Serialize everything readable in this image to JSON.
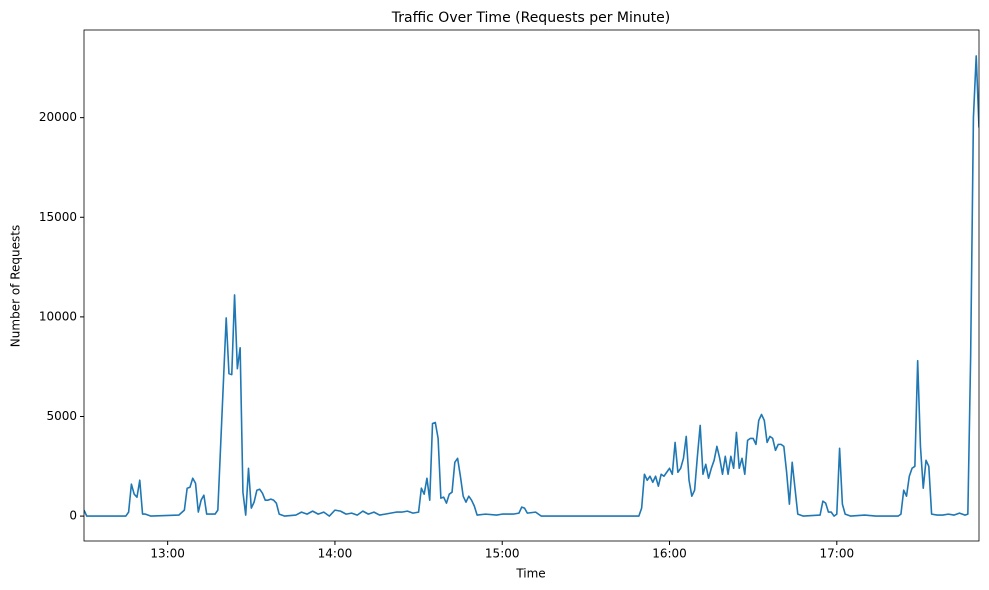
{
  "chart_data": {
    "type": "line",
    "title": "Traffic Over Time (Requests per Minute)",
    "x_label": "Time",
    "y_label": "Number of Requests",
    "color": "#1f77b4",
    "x": [
      "12:30",
      "12:31",
      "12:45",
      "12:46",
      "12:47",
      "12:48",
      "12:49",
      "12:50",
      "12:51",
      "12:52",
      "12:54",
      "13:04",
      "13:06",
      "13:07",
      "13:08",
      "13:09",
      "13:10",
      "13:11",
      "13:12",
      "13:13",
      "13:14",
      "13:17",
      "13:18",
      "13:21",
      "13:22",
      "13:23",
      "13:24",
      "13:25",
      "13:26",
      "13:27",
      "13:28",
      "13:29",
      "13:30",
      "13:31",
      "13:32",
      "13:33",
      "13:34",
      "13:35",
      "13:36",
      "13:37",
      "13:38",
      "13:39",
      "13:40",
      "13:42",
      "13:46",
      "13:48",
      "13:50",
      "13:52",
      "13:54",
      "13:56",
      "13:58",
      "14:00",
      "14:02",
      "14:04",
      "14:06",
      "14:08",
      "14:10",
      "14:12",
      "14:14",
      "14:16",
      "14:18",
      "14:20",
      "14:22",
      "14:24",
      "14:26",
      "14:28",
      "14:30",
      "14:31",
      "14:32",
      "14:33",
      "14:34",
      "14:35",
      "14:36",
      "14:37",
      "14:38",
      "14:39",
      "14:40",
      "14:41",
      "14:42",
      "14:43",
      "14:44",
      "14:45",
      "14:46",
      "14:47",
      "14:48",
      "14:49",
      "14:50",
      "14:51",
      "14:54",
      "14:58",
      "15:00",
      "15:04",
      "15:06",
      "15:07",
      "15:08",
      "15:09",
      "15:12",
      "15:14",
      "15:49",
      "15:50",
      "15:51",
      "15:52",
      "15:53",
      "15:54",
      "15:55",
      "15:56",
      "15:57",
      "15:58",
      "15:59",
      "16:00",
      "16:01",
      "16:02",
      "16:03",
      "16:04",
      "16:05",
      "16:06",
      "16:07",
      "16:08",
      "16:09",
      "16:10",
      "16:11",
      "16:12",
      "16:13",
      "16:14",
      "16:15",
      "16:16",
      "16:17",
      "16:18",
      "16:19",
      "16:20",
      "16:21",
      "16:22",
      "16:23",
      "16:24",
      "16:25",
      "16:26",
      "16:27",
      "16:28",
      "16:29",
      "16:30",
      "16:31",
      "16:32",
      "16:33",
      "16:34",
      "16:35",
      "16:36",
      "16:37",
      "16:38",
      "16:39",
      "16:40",
      "16:41",
      "16:42",
      "16:43",
      "16:44",
      "16:45",
      "16:46",
      "16:48",
      "16:54",
      "16:55",
      "16:56",
      "16:57",
      "16:58",
      "16:59",
      "17:00",
      "17:01",
      "17:02",
      "17:03",
      "17:05",
      "17:10",
      "17:14",
      "17:22",
      "17:23",
      "17:24",
      "17:25",
      "17:26",
      "17:27",
      "17:28",
      "17:29",
      "17:30",
      "17:31",
      "17:32",
      "17:33",
      "17:34",
      "17:36",
      "17:38",
      "17:40",
      "17:42",
      "17:44",
      "17:46",
      "17:47",
      "17:48",
      "17:49",
      "17:50",
      "17:51"
    ],
    "values": [
      300,
      0,
      0,
      200,
      1600,
      1100,
      950,
      1800,
      100,
      100,
      0,
      50,
      300,
      1400,
      1450,
      1900,
      1650,
      200,
      800,
      1050,
      100,
      100,
      300,
      9950,
      7150,
      7100,
      11100,
      7400,
      8450,
      1200,
      50,
      2400,
      400,
      700,
      1300,
      1350,
      1150,
      800,
      800,
      850,
      800,
      650,
      100,
      0,
      50,
      200,
      100,
      250,
      100,
      200,
      0,
      300,
      250,
      100,
      150,
      50,
      250,
      100,
      200,
      50,
      100,
      150,
      200,
      200,
      250,
      150,
      200,
      1400,
      1100,
      1900,
      800,
      4650,
      4700,
      3900,
      900,
      950,
      650,
      1100,
      1200,
      2700,
      2900,
      2000,
      1000,
      700,
      1000,
      800,
      500,
      50,
      100,
      50,
      100,
      100,
      150,
      450,
      400,
      150,
      200,
      0,
      0,
      400,
      2100,
      1800,
      2000,
      1700,
      2000,
      1500,
      2100,
      2000,
      2200,
      2400,
      2100,
      3700,
      2200,
      2400,
      2900,
      4000,
      1800,
      1000,
      1300,
      3000,
      4550,
      2100,
      2600,
      1900,
      2400,
      2800,
      3500,
      2900,
      2100,
      3000,
      2100,
      3000,
      2400,
      4200,
      2400,
      2900,
      2100,
      3800,
      3900,
      3900,
      3600,
      4800,
      5100,
      4800,
      3700,
      4000,
      3900,
      3300,
      3600,
      3600,
      3500,
      2200,
      600,
      2700,
      1400,
      100,
      0,
      50,
      750,
      650,
      200,
      200,
      0,
      100,
      3400,
      600,
      100,
      0,
      50,
      0,
      0,
      100,
      1300,
      1000,
      2000,
      2400,
      2500,
      7800,
      3500,
      1400,
      2800,
      2500,
      100,
      50,
      50,
      100,
      50,
      150,
      50,
      100,
      8000,
      20000,
      23100,
      19500
    ],
    "xlim": [
      "12:30",
      "17:51"
    ],
    "xticks": [
      "13:00",
      "14:00",
      "15:00",
      "16:00",
      "17:00"
    ],
    "ylim": [
      -1250,
      24400
    ],
    "yticks": [
      0,
      5000,
      10000,
      15000,
      20000
    ],
    "grid": false
  }
}
